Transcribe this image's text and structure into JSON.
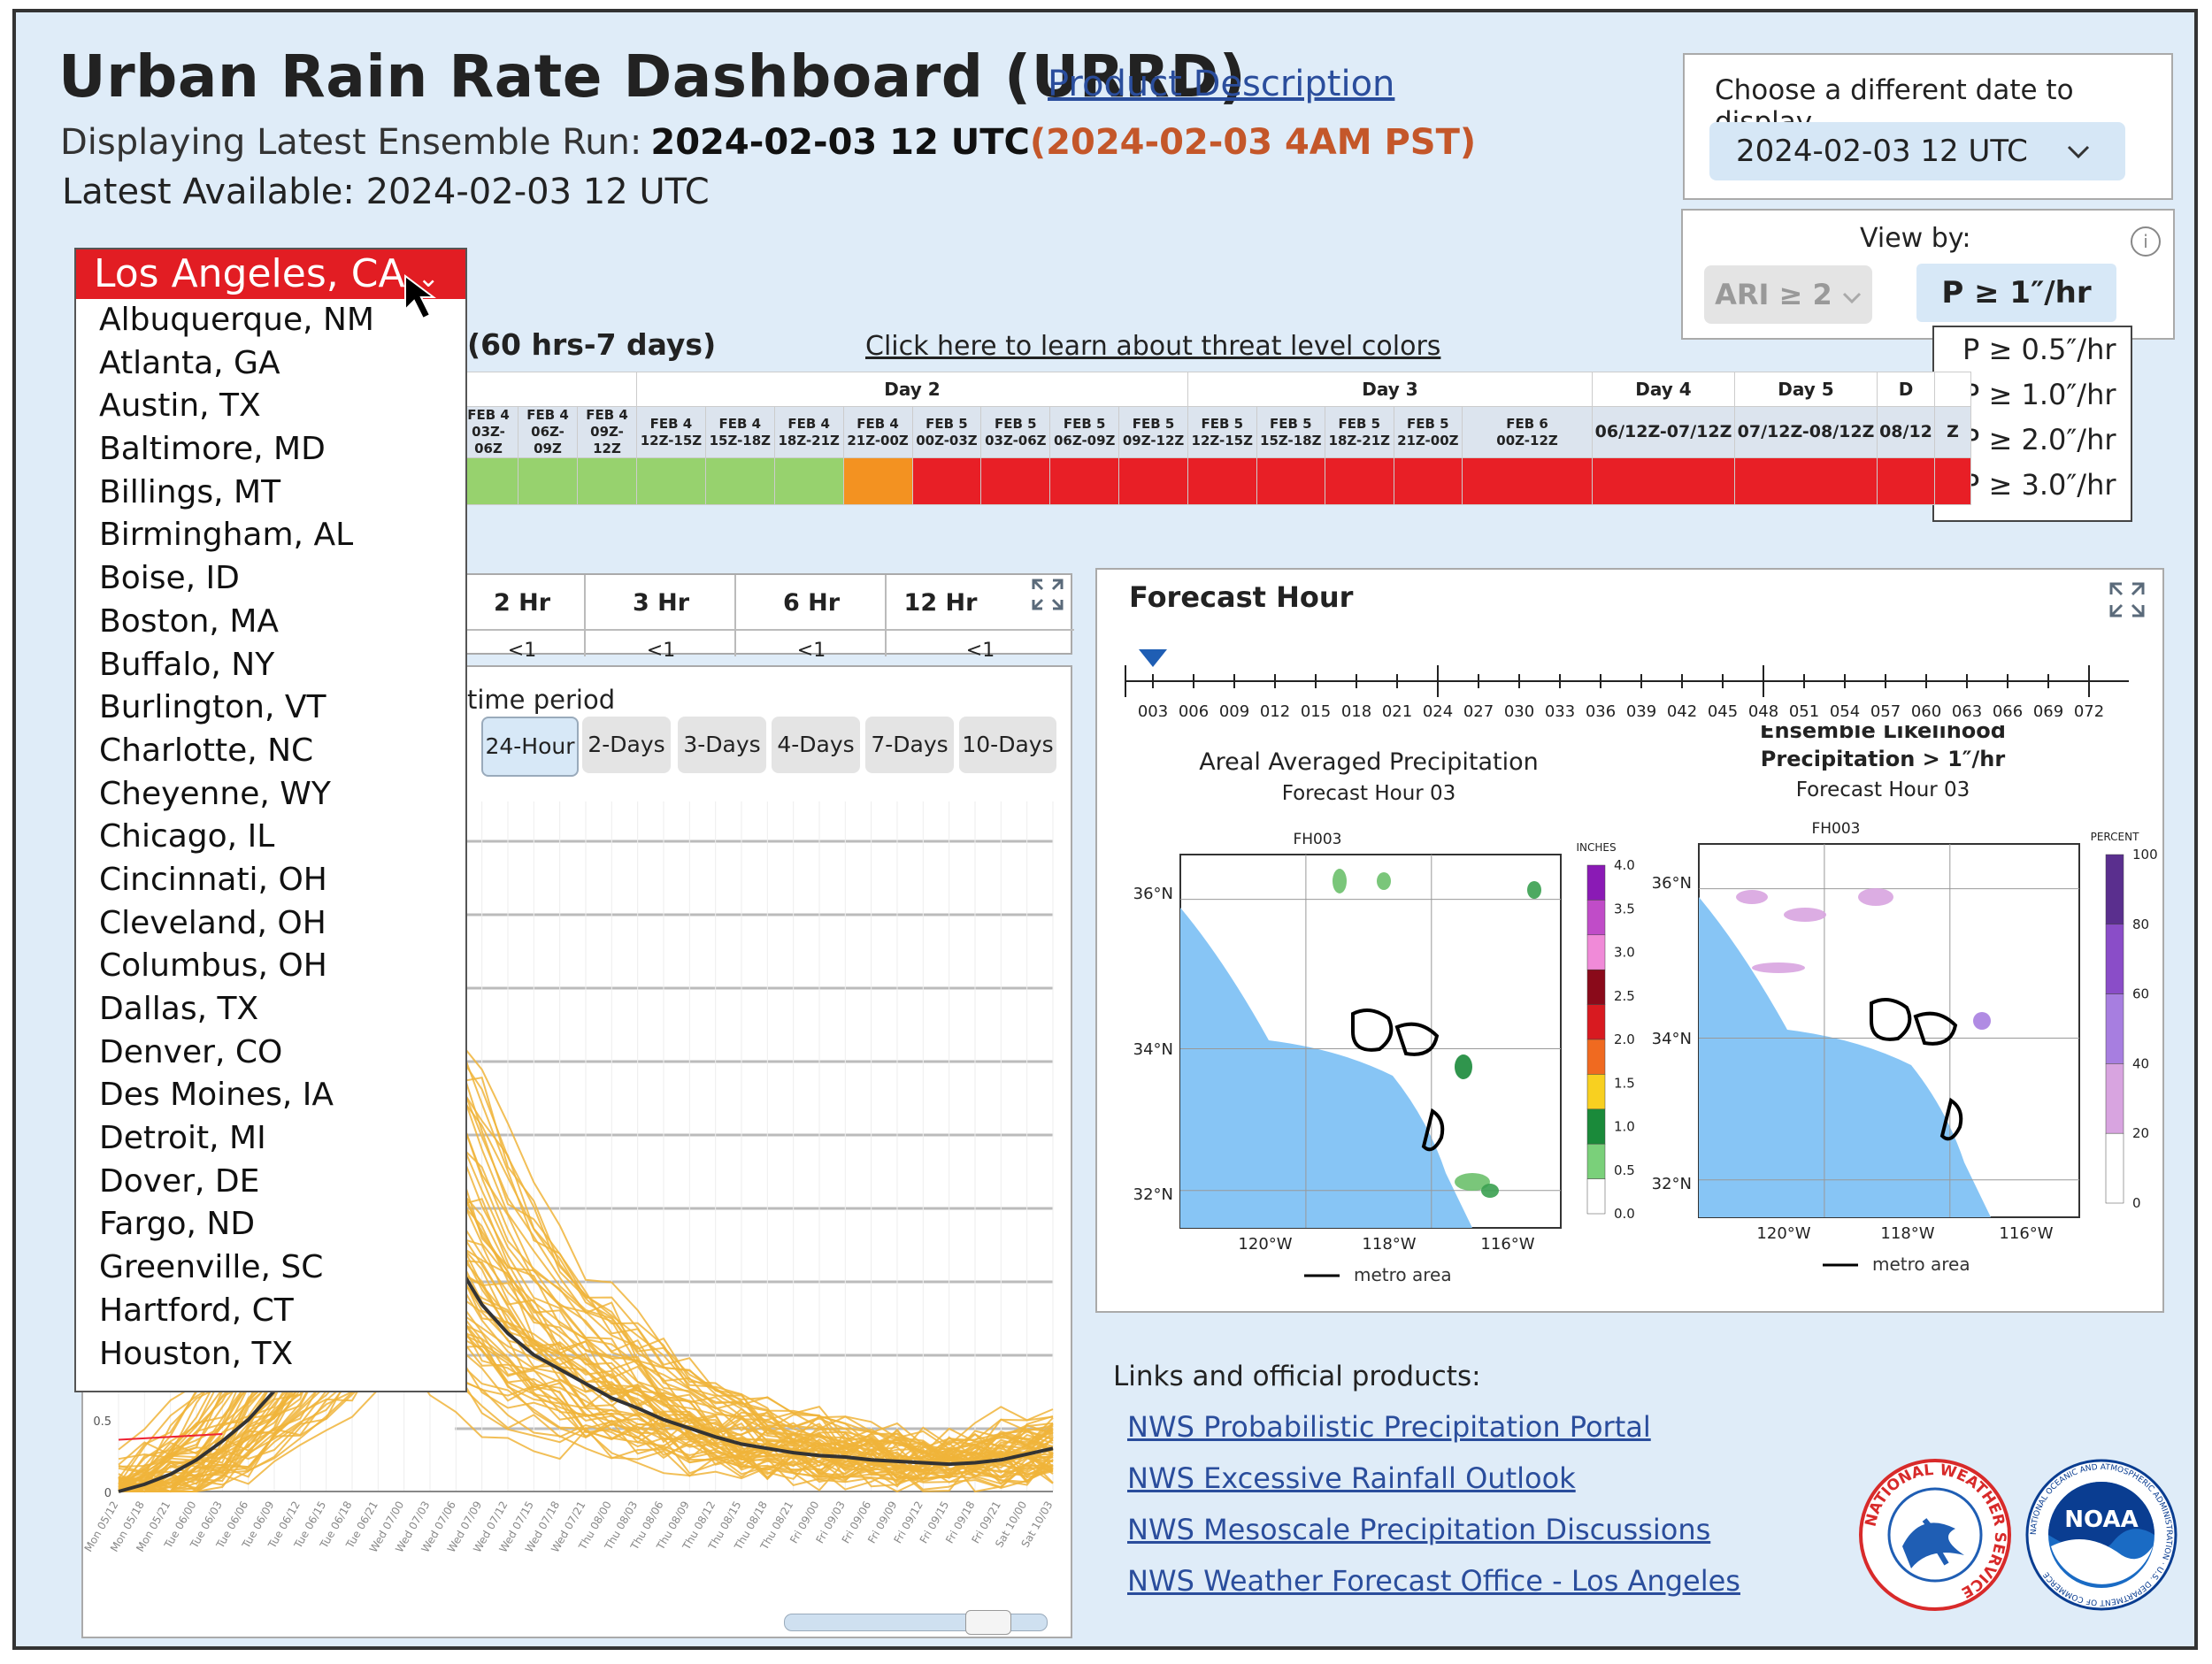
{
  "header": {
    "title": "Urban Rain Rate Dashboard (URRD)",
    "product_link": "Product Description",
    "run_label": "Displaying Latest Ensemble Run:",
    "run_value": "2024-02-03 12 UTC",
    "run_local": "(2024-02-03 4AM PST)",
    "latest": "Latest Available: 2024-02-03 12 UTC"
  },
  "date_selector": {
    "label": "Choose a different date to display",
    "value": "2024-02-03 12 UTC"
  },
  "view_by": {
    "label": "View by:",
    "ari_button": "ARI ≥ 2",
    "p_button": "P ≥ 1″/hr",
    "p_options": [
      "P ≥ 0.5″/hr",
      "P ≥ 1.0″/hr",
      "P ≥ 2.0″/hr",
      "P ≥ 3.0″/hr"
    ]
  },
  "city_selector": {
    "selected": "Los Angeles, CA",
    "options": [
      "Albuquerque, NM",
      "Atlanta, GA",
      "Austin, TX",
      "Baltimore, MD",
      "Billings, MT",
      "Birmingham, AL",
      "Boise, ID",
      "Boston, MA",
      "Buffalo, NY",
      "Burlington, VT",
      "Charlotte, NC",
      "Cheyenne, WY",
      "Chicago, IL",
      "Cincinnati, OH",
      "Cleveland, OH",
      "Columbus, OH",
      "Dallas, TX",
      "Denver, CO",
      "Des Moines, IA",
      "Detroit, MI",
      "Dover, DE",
      "Fargo, ND",
      "Greenville, SC",
      "Hartford, CT",
      "Houston, TX"
    ]
  },
  "threat_levels": {
    "header": "(60 hrs-7 days)",
    "learn_link": "Click here to learn about threat level colors",
    "days": [
      "Day 2",
      "Day 3",
      "Day 4",
      "Day 5",
      "D"
    ],
    "periods": [
      {
        "label": "FEB 4\n03Z-06Z",
        "color": "#97d26e"
      },
      {
        "label": "FEB 4\n06Z-09Z",
        "color": "#97d26e"
      },
      {
        "label": "FEB 4\n09Z-12Z",
        "color": "#97d26e"
      },
      {
        "label": "FEB 4\n12Z-15Z",
        "color": "#97d26e"
      },
      {
        "label": "FEB 4\n15Z-18Z",
        "color": "#97d26e"
      },
      {
        "label": "FEB 4\n18Z-21Z",
        "color": "#97d26e"
      },
      {
        "label": "FEB 4\n21Z-00Z",
        "color": "#f39221"
      },
      {
        "label": "FEB 5\n00Z-03Z",
        "color": "#e81f26"
      },
      {
        "label": "FEB 5\n03Z-06Z",
        "color": "#e81f26"
      },
      {
        "label": "FEB 5\n06Z-09Z",
        "color": "#e81f26"
      },
      {
        "label": "FEB 5\n09Z-12Z",
        "color": "#e81f26"
      },
      {
        "label": "FEB 5\n12Z-15Z",
        "color": "#e81f26"
      },
      {
        "label": "FEB 5\n15Z-18Z",
        "color": "#e81f26"
      },
      {
        "label": "FEB 5\n18Z-21Z",
        "color": "#e81f26"
      },
      {
        "label": "FEB 5\n21Z-00Z",
        "color": "#e81f26"
      },
      {
        "label": "FEB 6\n00Z-12Z",
        "color": "#e81f26"
      },
      {
        "label": "06/12Z-07/12Z",
        "color": "#e81f26"
      },
      {
        "label": "07/12Z-08/12Z",
        "color": "#e81f26"
      },
      {
        "label": "08/12",
        "color": "#e81f26"
      },
      {
        "label": "Z",
        "color": "#e81f26"
      }
    ]
  },
  "hours_table": {
    "headers": [
      "2 Hr",
      "3 Hr",
      "6 Hr",
      "12 Hr"
    ],
    "values": [
      "<1",
      "<1",
      "<1",
      "<1"
    ]
  },
  "time_period": {
    "label": "time period",
    "buttons": [
      "24-Hour",
      "2-Days",
      "3-Days",
      "4-Days",
      "7-Days",
      "10-Days"
    ],
    "active": "24-Hour"
  },
  "forecast_panel": {
    "title": "Forecast Hour",
    "hours": [
      "003",
      "006",
      "009",
      "012",
      "015",
      "018",
      "021",
      "024",
      "027",
      "030",
      "033",
      "036",
      "039",
      "042",
      "045",
      "048",
      "051",
      "054",
      "057",
      "060",
      "063",
      "066",
      "069",
      "072"
    ],
    "map_left": {
      "title": "Areal Averaged Precipitation",
      "subtitle": "Forecast Hour 03",
      "panel_label": "FH003",
      "legend_title": "INCHES",
      "legend_ticks": [
        "4.0",
        "3.5",
        "3.0",
        "2.5",
        "2.0",
        "1.5",
        "1.0",
        "0.5",
        "0.0"
      ],
      "lat_labels": [
        "36°N",
        "34°N",
        "32°N"
      ],
      "lon_labels": [
        "120°W",
        "118°W",
        "116°W"
      ],
      "key": "metro area"
    },
    "map_right": {
      "title": "Ensemble Likelihood",
      "title2": "Precipitation > 1″/hr",
      "subtitle": "Forecast Hour 03",
      "panel_label": "FH003",
      "legend_title": "PERCENT",
      "legend_ticks": [
        "100",
        "80",
        "60",
        "40",
        "20",
        "0"
      ],
      "lat_labels": [
        "36°N",
        "34°N",
        "32°N"
      ],
      "lon_labels": [
        "120°W",
        "118°W",
        "116°W"
      ],
      "key": "metro area"
    }
  },
  "chart_data": {
    "type": "line",
    "title": "",
    "xlabel": "",
    "ylabel": "",
    "y_ticks_visible": [
      "0",
      "0.5"
    ],
    "x": [
      "Mon 05/12",
      "Mon 05/18",
      "Mon 05/21",
      "Tue 06/00",
      "Tue 06/03",
      "Tue 06/06",
      "Tue 06/09",
      "Tue 06/12",
      "Tue 06/15",
      "Tue 06/18",
      "Tue 06/21",
      "Wed 07/00",
      "Wed 07/03",
      "Wed 07/06",
      "Wed 07/09",
      "Wed 07/12",
      "Wed 07/15",
      "Wed 07/18",
      "Wed 07/21",
      "Thu 08/00",
      "Thu 08/03",
      "Thu 08/06",
      "Thu 08/09",
      "Thu 08/12",
      "Thu 08/15",
      "Thu 08/18",
      "Thu 08/21",
      "Fri 09/00",
      "Fri 09/03",
      "Fri 09/06",
      "Fri 09/09",
      "Fri 09/12",
      "Fri 09/15",
      "Fri 09/18",
      "Fri 09/21",
      "Sat 10/00",
      "Sat 10/03"
    ],
    "series": [
      {
        "values": [
          0.0,
          0.05,
          0.12,
          0.22,
          0.35,
          0.5,
          0.7,
          0.95,
          1.2,
          1.5,
          1.8,
          2.0,
          1.9,
          1.6,
          1.3,
          1.1,
          0.95,
          0.85,
          0.75,
          0.65,
          0.58,
          0.5,
          0.44,
          0.38,
          0.33,
          0.3,
          0.27,
          0.25,
          0.24,
          0.22,
          0.21,
          0.2,
          0.19,
          0.2,
          0.22,
          0.26,
          0.3
        ]
      }
    ]
  },
  "links": {
    "header": "Links and official products:",
    "items": [
      "NWS Probabilistic Precipitation Portal",
      "NWS Excessive Rainfall Outlook",
      "NWS Mesoscale Precipitation Discussions",
      "NWS Weather Forecast Office - Los Angeles"
    ]
  },
  "logos": {
    "nws": "NATIONAL WEATHER SERVICE",
    "noaa": "NOAA",
    "noaa_ring": "NATIONAL OCEANIC AND ATMOSPHERIC ADMINISTRATION · U.S. DEPARTMENT OF COMMERCE"
  }
}
